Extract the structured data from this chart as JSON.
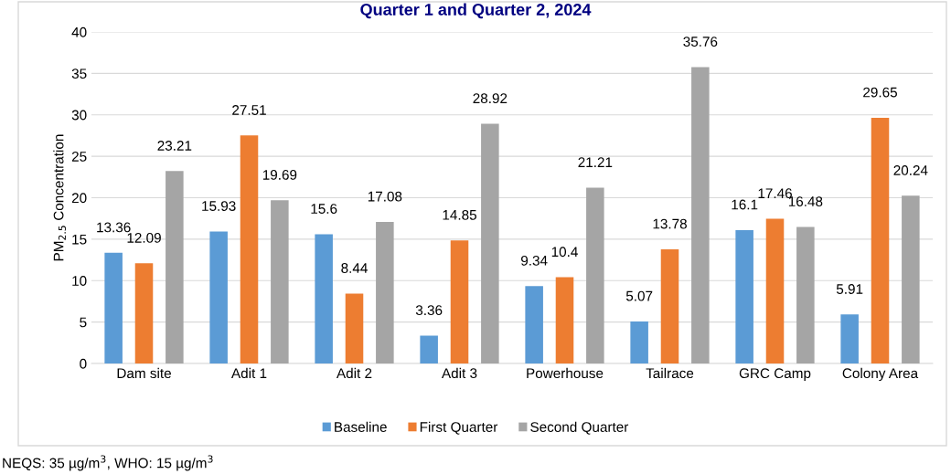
{
  "chart_data": {
    "type": "bar",
    "title": "Quarter 1 and Quarter 2, 2024",
    "ylabel": "PM$_{2.5}$ Concentration",
    "categories": [
      "Dam site",
      "Adit 1",
      "Adit 2",
      "Adit 3",
      "Powerhouse",
      "Tailrace",
      "GRC Camp",
      "Colony Area"
    ],
    "series": [
      {
        "name": "Baseline",
        "color": "#5b9bd5",
        "values": [
          13.36,
          15.93,
          15.6,
          3.36,
          9.34,
          5.07,
          16.1,
          5.91
        ]
      },
      {
        "name": "First Quarter",
        "color": "#ed7d31",
        "values": [
          12.09,
          27.51,
          8.44,
          14.85,
          10.4,
          13.78,
          17.46,
          29.65
        ]
      },
      {
        "name": "Second Quarter",
        "color": "#a5a5a5",
        "values": [
          23.21,
          19.69,
          17.08,
          28.92,
          21.21,
          35.76,
          16.48,
          20.24
        ]
      }
    ],
    "ylim": [
      0,
      40
    ],
    "yticks": [
      0,
      5,
      10,
      15,
      20,
      25,
      30,
      35,
      40
    ],
    "grid": "y",
    "legend": "bottom",
    "data_labels": true,
    "annotations": [
      "NEQS: 35 µg/m$^{3}$, WHO: 15 µg/m$^{3}$"
    ]
  }
}
